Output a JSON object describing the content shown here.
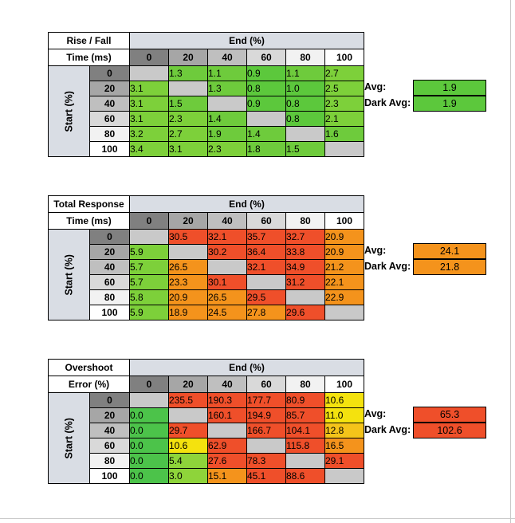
{
  "tables": [
    {
      "title_line1": "Rise / Fall",
      "title_line2": "Time (ms)",
      "end_label": "End (%)",
      "start_label": "Start (%)",
      "columns": [
        "0",
        "20",
        "40",
        "60",
        "80",
        "100"
      ],
      "rows": [
        {
          "label": "0",
          "cells": [
            "",
            "1.3",
            "1.1",
            "0.9",
            "1.1",
            "2.7"
          ],
          "colors": [
            "#c9c9c9",
            "#6ecb3c",
            "#6ecb3c",
            "#5cc83c",
            "#6ecb3c",
            "#7dd03a"
          ]
        },
        {
          "label": "20",
          "cells": [
            "3.1",
            "",
            "1.3",
            "0.8",
            "1.0",
            "2.5"
          ],
          "colors": [
            "#7dd03a",
            "#c9c9c9",
            "#6ecb3c",
            "#5cc83c",
            "#5cc83c",
            "#7dd03a"
          ]
        },
        {
          "label": "40",
          "cells": [
            "3.1",
            "1.5",
            "",
            "0.9",
            "0.8",
            "2.3"
          ],
          "colors": [
            "#7dd03a",
            "#6ecb3c",
            "#c9c9c9",
            "#5cc83c",
            "#5cc83c",
            "#7dd03a"
          ]
        },
        {
          "label": "60",
          "cells": [
            "3.1",
            "2.3",
            "1.4",
            "",
            "0.8",
            "2.1"
          ],
          "colors": [
            "#7dd03a",
            "#7dd03a",
            "#6ecb3c",
            "#c9c9c9",
            "#5cc83c",
            "#7dd03a"
          ]
        },
        {
          "label": "80",
          "cells": [
            "3.2",
            "2.7",
            "1.9",
            "1.4",
            "",
            "1.6"
          ],
          "colors": [
            "#7dd03a",
            "#7dd03a",
            "#6ecb3c",
            "#6ecb3c",
            "#c9c9c9",
            "#6ecb3c"
          ]
        },
        {
          "label": "100",
          "cells": [
            "3.4",
            "3.1",
            "2.3",
            "1.8",
            "1.5",
            ""
          ],
          "colors": [
            "#7dd03a",
            "#7dd03a",
            "#7dd03a",
            "#6ecb3c",
            "#6ecb3c",
            "#c9c9c9"
          ]
        }
      ],
      "avg_label": "Avg:",
      "avg_value": "1.9",
      "avg_color": "#5cc83c",
      "dark_avg_label": "Dark Avg:",
      "dark_avg_value": "1.9",
      "dark_avg_color": "#5cc83c"
    },
    {
      "title_line1": "Total Response",
      "title_line2": "Time (ms)",
      "end_label": "End (%)",
      "start_label": "Start (%)",
      "columns": [
        "0",
        "20",
        "40",
        "60",
        "80",
        "100"
      ],
      "rows": [
        {
          "label": "0",
          "cells": [
            "",
            "30.5",
            "32.1",
            "35.7",
            "32.7",
            "20.9"
          ],
          "colors": [
            "#c9c9c9",
            "#ef4f2a",
            "#ef4f2a",
            "#ef4f2a",
            "#ef4f2a",
            "#f4931c"
          ]
        },
        {
          "label": "20",
          "cells": [
            "5.9",
            "",
            "30.2",
            "36.4",
            "33.8",
            "20.9"
          ],
          "colors": [
            "#7dd03a",
            "#c9c9c9",
            "#ef4f2a",
            "#ef4f2a",
            "#ef4f2a",
            "#f4931c"
          ]
        },
        {
          "label": "40",
          "cells": [
            "5.7",
            "26.5",
            "",
            "32.1",
            "34.9",
            "21.2"
          ],
          "colors": [
            "#7dd03a",
            "#f4931c",
            "#c9c9c9",
            "#ef4f2a",
            "#ef4f2a",
            "#f4931c"
          ]
        },
        {
          "label": "60",
          "cells": [
            "5.7",
            "23.3",
            "30.1",
            "",
            "31.2",
            "22.1"
          ],
          "colors": [
            "#7dd03a",
            "#f4931c",
            "#ef4f2a",
            "#c9c9c9",
            "#ef4f2a",
            "#f4931c"
          ]
        },
        {
          "label": "80",
          "cells": [
            "5.8",
            "20.9",
            "26.5",
            "29.5",
            "",
            "22.9"
          ],
          "colors": [
            "#7dd03a",
            "#f4931c",
            "#f4931c",
            "#ef4f2a",
            "#c9c9c9",
            "#f4931c"
          ]
        },
        {
          "label": "100",
          "cells": [
            "5.9",
            "18.9",
            "24.5",
            "27.8",
            "29.6",
            ""
          ],
          "colors": [
            "#7dd03a",
            "#f4931c",
            "#f4931c",
            "#f4931c",
            "#ef4f2a",
            "#c9c9c9"
          ]
        }
      ],
      "avg_label": "Avg:",
      "avg_value": "24.1",
      "avg_color": "#f4931c",
      "dark_avg_label": "Dark Avg:",
      "dark_avg_value": "21.8",
      "dark_avg_color": "#f4931c"
    },
    {
      "title_line1": "Overshoot",
      "title_line2": "Error (%)",
      "end_label": "End (%)",
      "start_label": "Start (%)",
      "columns": [
        "0",
        "20",
        "40",
        "60",
        "80",
        "100"
      ],
      "rows": [
        {
          "label": "0",
          "cells": [
            "",
            "235.5",
            "190.3",
            "177.7",
            "80.9",
            "10.6"
          ],
          "colors": [
            "#c9c9c9",
            "#ef4f2a",
            "#ef4f2a",
            "#ef4f2a",
            "#ef4f2a",
            "#f4e20e"
          ]
        },
        {
          "label": "20",
          "cells": [
            "0.0",
            "",
            "160.1",
            "194.9",
            "85.7",
            "11.0"
          ],
          "colors": [
            "#4cc34a",
            "#c9c9c9",
            "#ef4f2a",
            "#ef4f2a",
            "#ef4f2a",
            "#f4e20e"
          ]
        },
        {
          "label": "40",
          "cells": [
            "0.0",
            "29.7",
            "",
            "166.7",
            "104.1",
            "12.8"
          ],
          "colors": [
            "#4cc34a",
            "#ef4f2a",
            "#c9c9c9",
            "#ef4f2a",
            "#ef4f2a",
            "#f4c41a"
          ]
        },
        {
          "label": "60",
          "cells": [
            "0.0",
            "10.6",
            "62.9",
            "",
            "115.8",
            "16.5"
          ],
          "colors": [
            "#4cc34a",
            "#f4e20e",
            "#ef4f2a",
            "#c9c9c9",
            "#ef4f2a",
            "#f4931c"
          ]
        },
        {
          "label": "80",
          "cells": [
            "0.0",
            "5.4",
            "27.6",
            "78.3",
            "",
            "29.1"
          ],
          "colors": [
            "#4cc34a",
            "#8ed43a",
            "#ef4f2a",
            "#ef4f2a",
            "#c9c9c9",
            "#ef4f2a"
          ]
        },
        {
          "label": "100",
          "cells": [
            "0.0",
            "3.0",
            "15.1",
            "45.1",
            "88.6",
            ""
          ],
          "colors": [
            "#4cc34a",
            "#8ed43a",
            "#f4931c",
            "#ef4f2a",
            "#ef4f2a",
            "#c9c9c9"
          ]
        }
      ],
      "avg_label": "Avg:",
      "avg_value": "65.3",
      "avg_color": "#ef4f2a",
      "dark_avg_label": "Dark Avg:",
      "dark_avg_value": "102.6",
      "dark_avg_color": "#ef4f2a"
    }
  ],
  "header_colors": [
    "#808080",
    "#a6a6a6",
    "#bfbfbf",
    "#d9d9d9",
    "#f2f2f2",
    "#ffffff"
  ]
}
